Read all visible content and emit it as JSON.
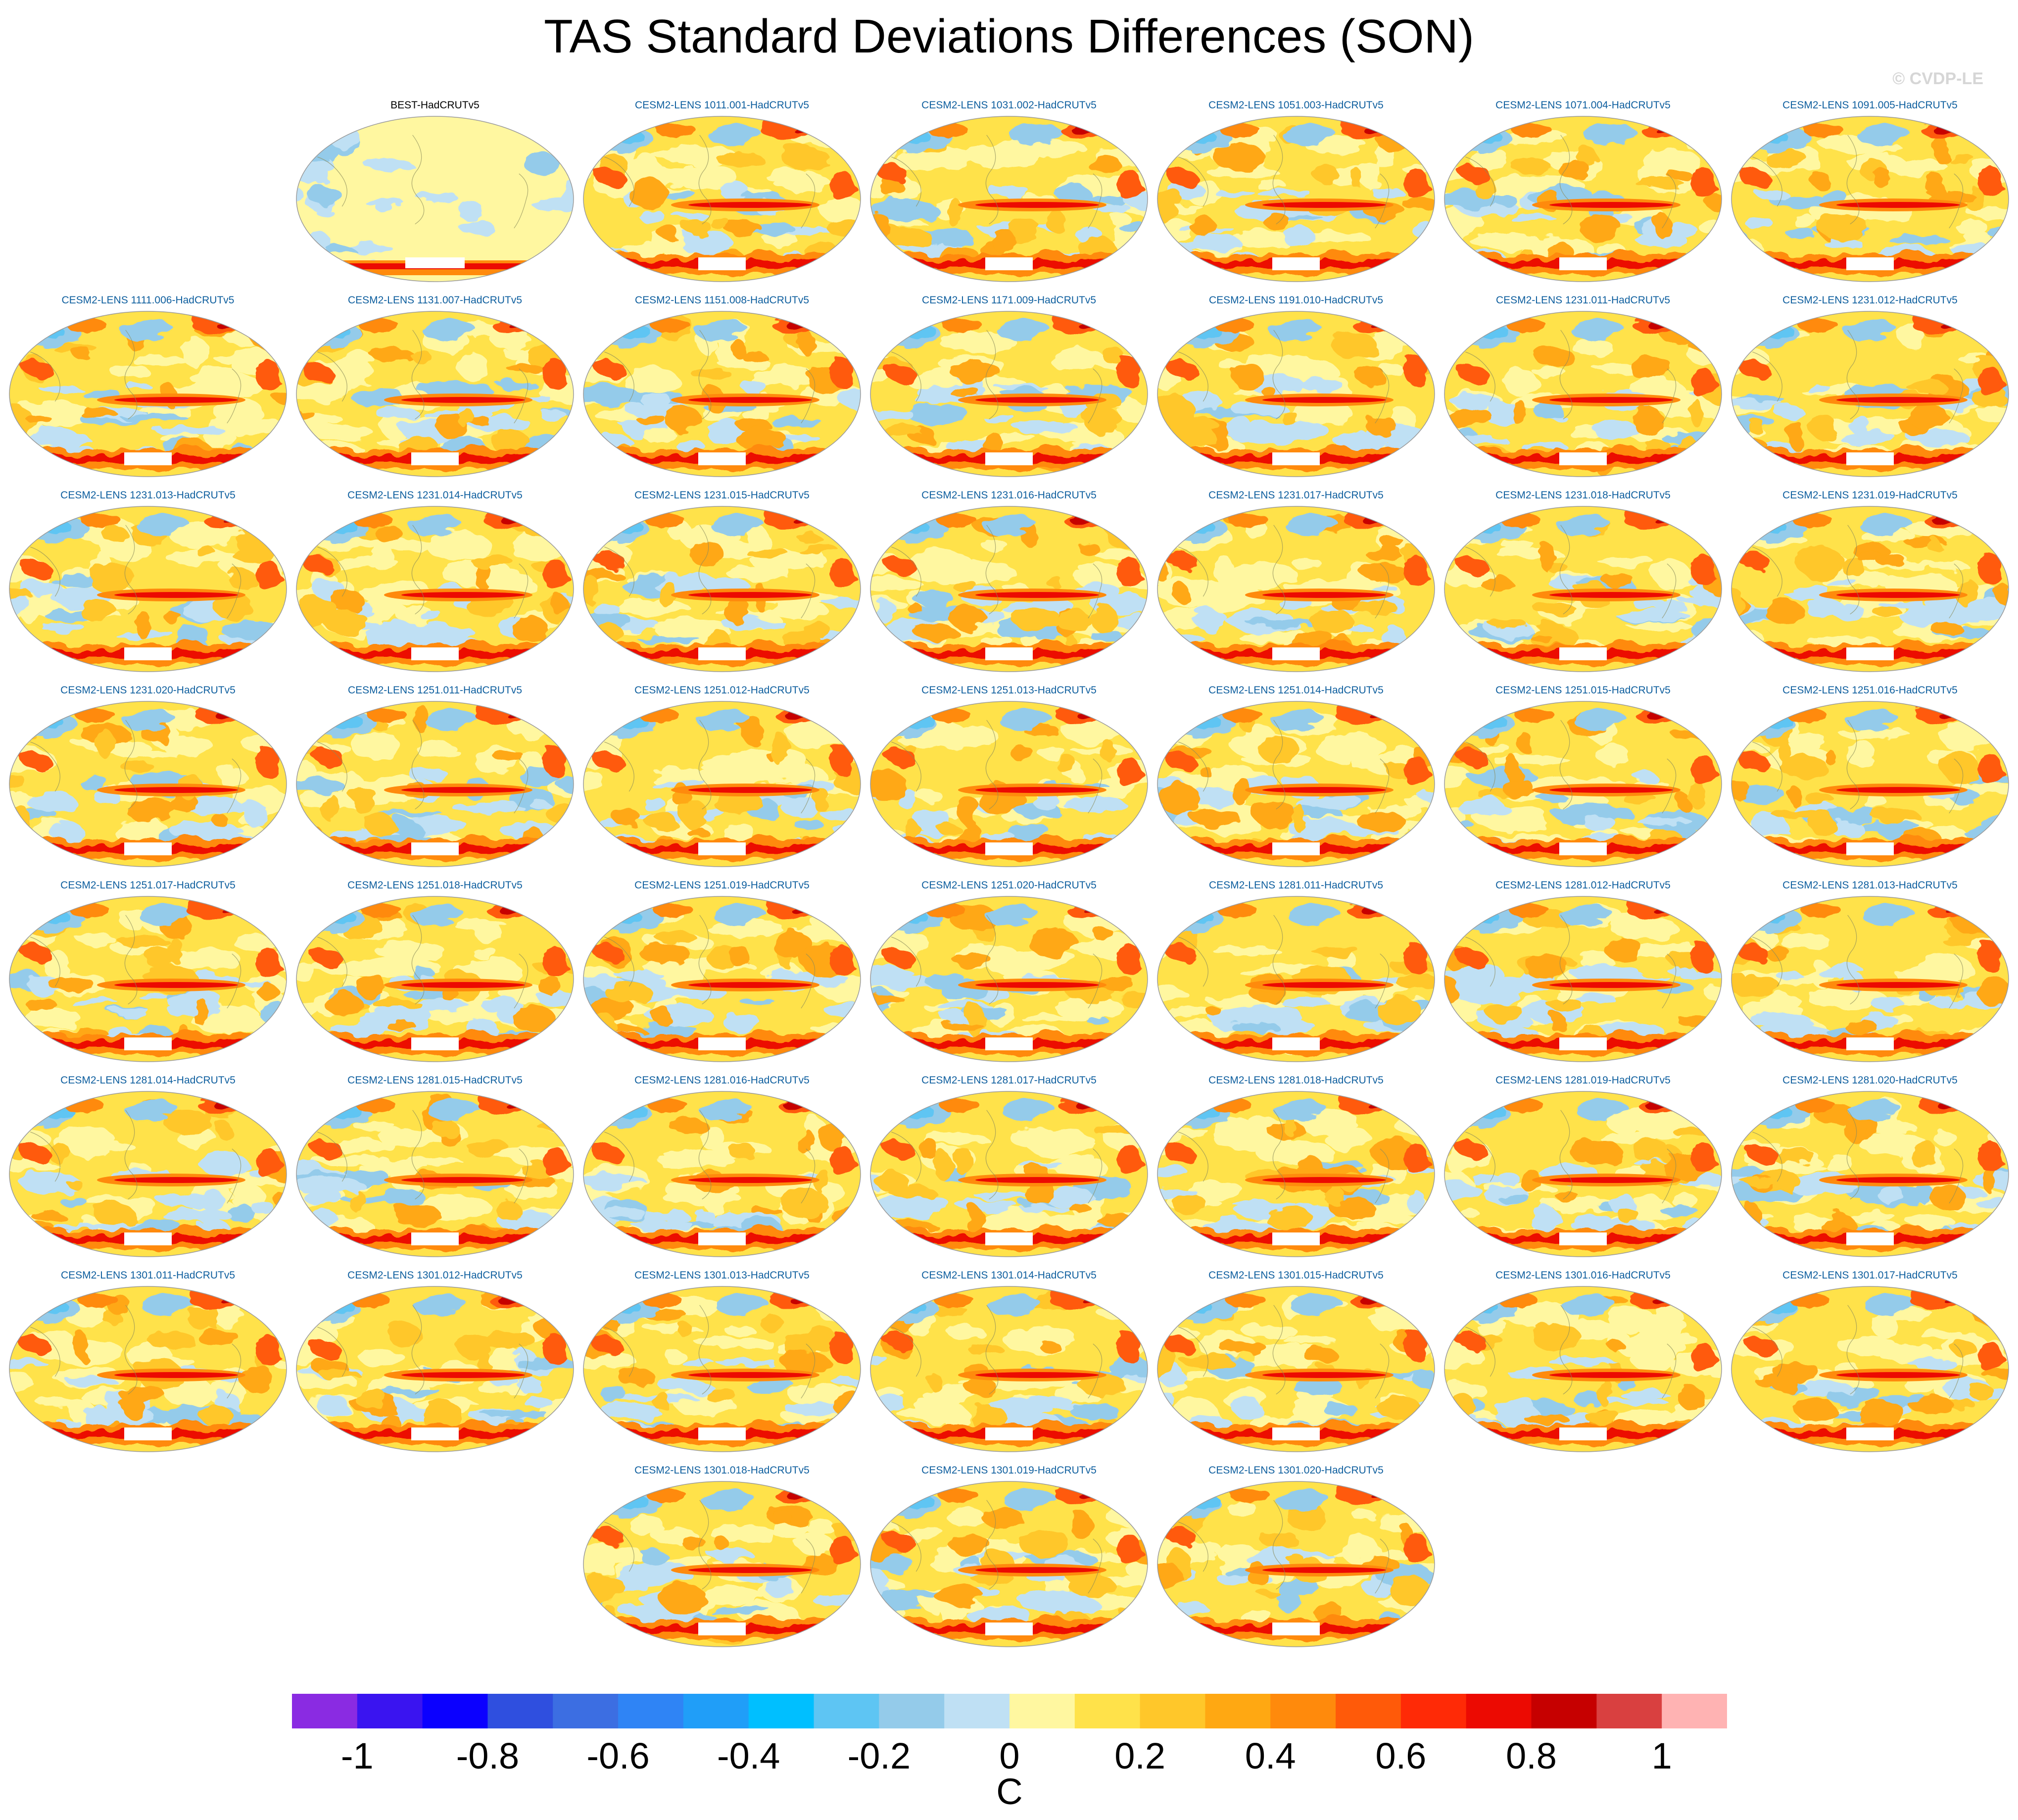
{
  "title": "TAS Standard Deviations Differences (SON)",
  "credit": "© CVDP-LE",
  "panels": [
    {
      "label": "BEST-HadCRUTv5",
      "row": 0,
      "col": 1,
      "obs": true
    },
    {
      "label": "CESM2-LENS 1011.001-HadCRUTv5",
      "row": 0,
      "col": 2
    },
    {
      "label": "CESM2-LENS 1031.002-HadCRUTv5",
      "row": 0,
      "col": 3
    },
    {
      "label": "CESM2-LENS 1051.003-HadCRUTv5",
      "row": 0,
      "col": 4
    },
    {
      "label": "CESM2-LENS 1071.004-HadCRUTv5",
      "row": 0,
      "col": 5
    },
    {
      "label": "CESM2-LENS 1091.005-HadCRUTv5",
      "row": 0,
      "col": 6
    },
    {
      "label": "CESM2-LENS 1111.006-HadCRUTv5",
      "row": 1,
      "col": 0
    },
    {
      "label": "CESM2-LENS 1131.007-HadCRUTv5",
      "row": 1,
      "col": 1
    },
    {
      "label": "CESM2-LENS 1151.008-HadCRUTv5",
      "row": 1,
      "col": 2
    },
    {
      "label": "CESM2-LENS 1171.009-HadCRUTv5",
      "row": 1,
      "col": 3
    },
    {
      "label": "CESM2-LENS 1191.010-HadCRUTv5",
      "row": 1,
      "col": 4
    },
    {
      "label": "CESM2-LENS 1231.011-HadCRUTv5",
      "row": 1,
      "col": 5
    },
    {
      "label": "CESM2-LENS 1231.012-HadCRUTv5",
      "row": 1,
      "col": 6
    },
    {
      "label": "CESM2-LENS 1231.013-HadCRUTv5",
      "row": 2,
      "col": 0
    },
    {
      "label": "CESM2-LENS 1231.014-HadCRUTv5",
      "row": 2,
      "col": 1
    },
    {
      "label": "CESM2-LENS 1231.015-HadCRUTv5",
      "row": 2,
      "col": 2
    },
    {
      "label": "CESM2-LENS 1231.016-HadCRUTv5",
      "row": 2,
      "col": 3
    },
    {
      "label": "CESM2-LENS 1231.017-HadCRUTv5",
      "row": 2,
      "col": 4
    },
    {
      "label": "CESM2-LENS 1231.018-HadCRUTv5",
      "row": 2,
      "col": 5
    },
    {
      "label": "CESM2-LENS 1231.019-HadCRUTv5",
      "row": 2,
      "col": 6
    },
    {
      "label": "CESM2-LENS 1231.020-HadCRUTv5",
      "row": 3,
      "col": 0
    },
    {
      "label": "CESM2-LENS 1251.011-HadCRUTv5",
      "row": 3,
      "col": 1
    },
    {
      "label": "CESM2-LENS 1251.012-HadCRUTv5",
      "row": 3,
      "col": 2
    },
    {
      "label": "CESM2-LENS 1251.013-HadCRUTv5",
      "row": 3,
      "col": 3
    },
    {
      "label": "CESM2-LENS 1251.014-HadCRUTv5",
      "row": 3,
      "col": 4
    },
    {
      "label": "CESM2-LENS 1251.015-HadCRUTv5",
      "row": 3,
      "col": 5
    },
    {
      "label": "CESM2-LENS 1251.016-HadCRUTv5",
      "row": 3,
      "col": 6
    },
    {
      "label": "CESM2-LENS 1251.017-HadCRUTv5",
      "row": 4,
      "col": 0
    },
    {
      "label": "CESM2-LENS 1251.018-HadCRUTv5",
      "row": 4,
      "col": 1
    },
    {
      "label": "CESM2-LENS 1251.019-HadCRUTv5",
      "row": 4,
      "col": 2
    },
    {
      "label": "CESM2-LENS 1251.020-HadCRUTv5",
      "row": 4,
      "col": 3
    },
    {
      "label": "CESM2-LENS 1281.011-HadCRUTv5",
      "row": 4,
      "col": 4
    },
    {
      "label": "CESM2-LENS 1281.012-HadCRUTv5",
      "row": 4,
      "col": 5
    },
    {
      "label": "CESM2-LENS 1281.013-HadCRUTv5",
      "row": 4,
      "col": 6
    },
    {
      "label": "CESM2-LENS 1281.014-HadCRUTv5",
      "row": 5,
      "col": 0
    },
    {
      "label": "CESM2-LENS 1281.015-HadCRUTv5",
      "row": 5,
      "col": 1
    },
    {
      "label": "CESM2-LENS 1281.016-HadCRUTv5",
      "row": 5,
      "col": 2
    },
    {
      "label": "CESM2-LENS 1281.017-HadCRUTv5",
      "row": 5,
      "col": 3
    },
    {
      "label": "CESM2-LENS 1281.018-HadCRUTv5",
      "row": 5,
      "col": 4
    },
    {
      "label": "CESM2-LENS 1281.019-HadCRUTv5",
      "row": 5,
      "col": 5
    },
    {
      "label": "CESM2-LENS 1281.020-HadCRUTv5",
      "row": 5,
      "col": 6
    },
    {
      "label": "CESM2-LENS 1301.011-HadCRUTv5",
      "row": 6,
      "col": 0
    },
    {
      "label": "CESM2-LENS 1301.012-HadCRUTv5",
      "row": 6,
      "col": 1
    },
    {
      "label": "CESM2-LENS 1301.013-HadCRUTv5",
      "row": 6,
      "col": 2
    },
    {
      "label": "CESM2-LENS 1301.014-HadCRUTv5",
      "row": 6,
      "col": 3
    },
    {
      "label": "CESM2-LENS 1301.015-HadCRUTv5",
      "row": 6,
      "col": 4
    },
    {
      "label": "CESM2-LENS 1301.016-HadCRUTv5",
      "row": 6,
      "col": 5
    },
    {
      "label": "CESM2-LENS 1301.017-HadCRUTv5",
      "row": 6,
      "col": 6
    },
    {
      "label": "CESM2-LENS 1301.018-HadCRUTv5",
      "row": 7,
      "col": 2
    },
    {
      "label": "CESM2-LENS 1301.019-HadCRUTv5",
      "row": 7,
      "col": 3
    },
    {
      "label": "CESM2-LENS 1301.020-HadCRUTv5",
      "row": 7,
      "col": 4
    }
  ],
  "colorbar": {
    "colors": [
      "#8a2be2",
      "#3a14f0",
      "#0b00ff",
      "#2f4fdf",
      "#3c6ee2",
      "#2f84f5",
      "#209ef8",
      "#00bfff",
      "#5ec5f3",
      "#94cbea",
      "#bfe0f4",
      "#fff7a0",
      "#ffe24a",
      "#ffc72a",
      "#ffa812",
      "#ff8a0c",
      "#ff5a09",
      "#ff2a06",
      "#ec0a02",
      "#c60000",
      "#d94040",
      "#ffb3b3"
    ],
    "ticks": [
      "-1",
      "-0.8",
      "-0.6",
      "-0.4",
      "-0.2",
      "0",
      "0.2",
      "0.4",
      "0.6",
      "0.8",
      "1"
    ],
    "units": "C"
  },
  "label_colors": {
    "obs": "#000000",
    "model": "#0d5e9e"
  }
}
